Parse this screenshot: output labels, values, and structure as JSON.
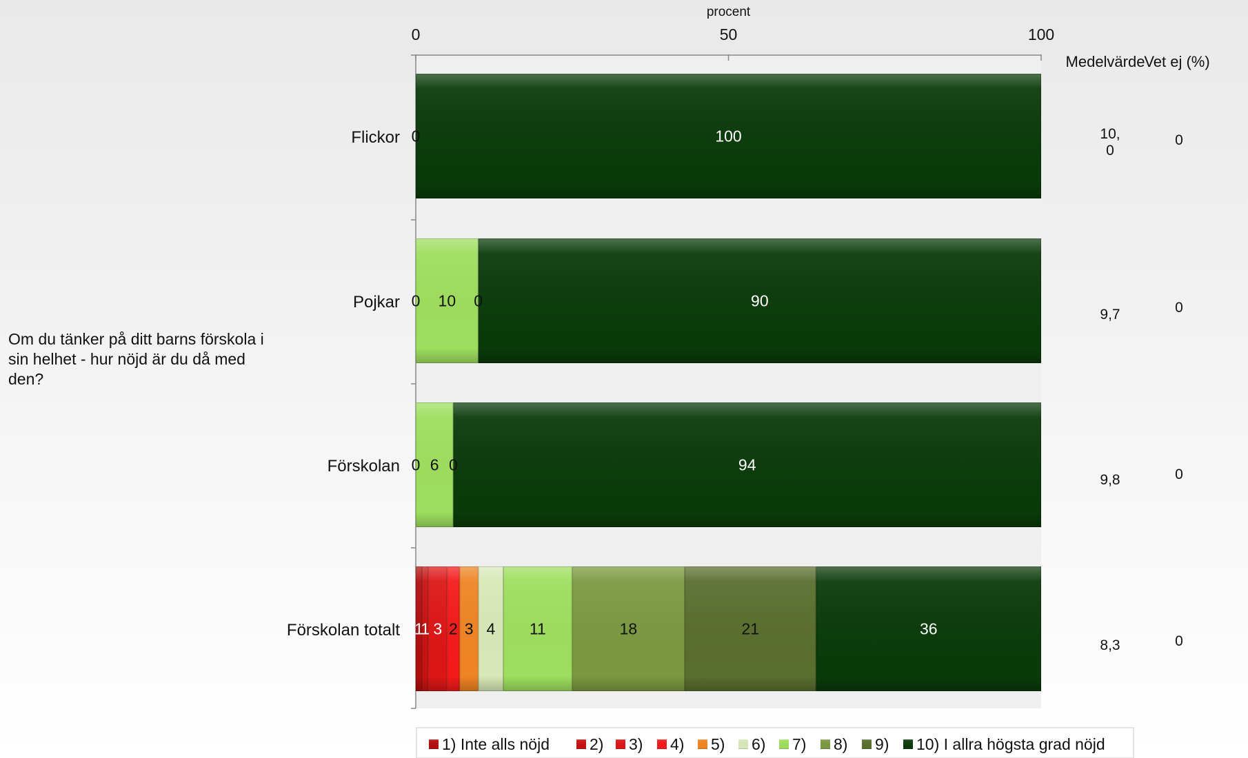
{
  "question": "Om du tänker på ditt barns förskola i sin helhet - hur nöjd är du då med den?",
  "chart_data": {
    "type": "bar",
    "orientation": "horizontal",
    "stacked": true,
    "xlabel": "procent",
    "xlim": [
      0,
      100
    ],
    "xticks": [
      0,
      50,
      100
    ],
    "categories": [
      "Flickor",
      "Pojkar",
      "Förskolan",
      "Förskolan totalt"
    ],
    "series": [
      {
        "name": "1) Inte alls nöjd",
        "color": "#b20e0e",
        "values": [
          0,
          0,
          0,
          1
        ]
      },
      {
        "name": "2)",
        "color": "#c71212",
        "values": [
          0,
          0,
          0,
          1
        ]
      },
      {
        "name": "3)",
        "color": "#dd1616",
        "values": [
          0,
          0,
          0,
          3
        ]
      },
      {
        "name": "4)",
        "color": "#f41a1a",
        "values": [
          0,
          0,
          0,
          2
        ]
      },
      {
        "name": "5)",
        "color": "#ef8424",
        "values": [
          0,
          0,
          0,
          3
        ]
      },
      {
        "name": "6)",
        "color": "#d8e8b8",
        "values": [
          0,
          0,
          0,
          4
        ]
      },
      {
        "name": "7)",
        "color": "#9ede5e",
        "values": [
          0,
          10,
          6,
          11
        ]
      },
      {
        "name": "8)",
        "color": "#7b9940",
        "values": [
          0,
          0,
          0,
          18
        ]
      },
      {
        "name": "9)",
        "color": "#5a6e2e",
        "values": [
          0,
          0,
          0,
          21
        ]
      },
      {
        "name": "10) I allra högsta grad nöjd",
        "color": "#0a3a0a",
        "values": [
          100,
          90,
          94,
          36
        ]
      }
    ],
    "point_labels": [
      [
        {
          "series": 0,
          "text": "0"
        },
        {
          "series": 9,
          "text": "100"
        }
      ],
      [
        {
          "series": 0,
          "text": "0"
        },
        {
          "series": 6,
          "text": "10"
        },
        {
          "series": 7,
          "text": "0"
        },
        {
          "series": 9,
          "text": "90"
        }
      ],
      [
        {
          "series": 0,
          "text": "0"
        },
        {
          "series": 6,
          "text": "6"
        },
        {
          "series": 7,
          "text": "0"
        },
        {
          "series": 9,
          "text": "94"
        }
      ],
      [
        {
          "series": 0,
          "text": "1"
        },
        {
          "series": 1,
          "text": "1"
        },
        {
          "series": 2,
          "text": "3"
        },
        {
          "series": 3,
          "text": "2"
        },
        {
          "series": 4,
          "text": "3"
        },
        {
          "series": 5,
          "text": "4"
        },
        {
          "series": 6,
          "text": "11"
        },
        {
          "series": 7,
          "text": "18"
        },
        {
          "series": 8,
          "text": "21"
        },
        {
          "series": 9,
          "text": "36"
        }
      ]
    ],
    "extra_columns": {
      "headers": [
        "Medelvärde",
        "Vet ej (%)"
      ],
      "medelvarde": [
        "10,\n0",
        "9,7",
        "9,8",
        "8,3"
      ],
      "vet_ej": [
        "0",
        "0",
        "0",
        "0"
      ]
    },
    "legend_position": "bottom",
    "grid": false
  }
}
